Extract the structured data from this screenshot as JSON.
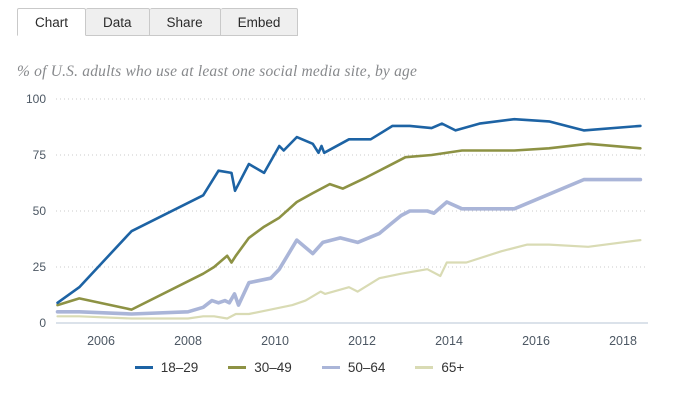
{
  "tabs": [
    {
      "label": "Chart",
      "active": true
    },
    {
      "label": "Data",
      "active": false
    },
    {
      "label": "Share",
      "active": false
    },
    {
      "label": "Embed",
      "active": false
    }
  ],
  "chart_data": {
    "type": "line",
    "title": "% of U.S. adults who use at least one social media site, by age",
    "unit": "%",
    "x_axis": {
      "range": [
        2005,
        2018.45
      ],
      "tick_years": [
        2006,
        2008,
        2010,
        2012,
        2014,
        2016,
        2018
      ]
    },
    "y_axis": {
      "range": [
        0,
        100
      ],
      "ticks": [
        0,
        25,
        50,
        75,
        100
      ],
      "gridlines": "dotted"
    },
    "legend_position": "bottom",
    "series": [
      {
        "name": "18–29",
        "color": "#1d63a4",
        "line_width": 2.6,
        "points": [
          [
            2005.0,
            9
          ],
          [
            2005.5,
            16
          ],
          [
            2006.7,
            41
          ],
          [
            2008.35,
            57
          ],
          [
            2008.7,
            68
          ],
          [
            2009.0,
            67
          ],
          [
            2009.08,
            59
          ],
          [
            2009.4,
            71
          ],
          [
            2009.75,
            67
          ],
          [
            2010.1,
            79
          ],
          [
            2010.2,
            77
          ],
          [
            2010.5,
            83
          ],
          [
            2010.87,
            80
          ],
          [
            2011.0,
            76
          ],
          [
            2011.07,
            79
          ],
          [
            2011.13,
            76
          ],
          [
            2011.7,
            82
          ],
          [
            2012.2,
            82
          ],
          [
            2012.7,
            88
          ],
          [
            2013.1,
            88
          ],
          [
            2013.6,
            87
          ],
          [
            2013.84,
            89
          ],
          [
            2014.15,
            86
          ],
          [
            2014.7,
            89
          ],
          [
            2015.5,
            91
          ],
          [
            2016.3,
            90
          ],
          [
            2017.1,
            86
          ],
          [
            2018.4,
            88
          ]
        ]
      },
      {
        "name": "30–49",
        "color": "#8d9244",
        "line_width": 2.6,
        "points": [
          [
            2005.0,
            8
          ],
          [
            2005.5,
            11
          ],
          [
            2006.7,
            6
          ],
          [
            2008.35,
            22
          ],
          [
            2008.6,
            25
          ],
          [
            2008.9,
            30
          ],
          [
            2009.0,
            27
          ],
          [
            2009.1,
            30
          ],
          [
            2009.4,
            38
          ],
          [
            2009.75,
            43
          ],
          [
            2010.1,
            47
          ],
          [
            2010.5,
            54
          ],
          [
            2010.87,
            58
          ],
          [
            2011.26,
            62
          ],
          [
            2011.56,
            60
          ],
          [
            2012.1,
            65
          ],
          [
            2012.6,
            70
          ],
          [
            2013.0,
            74
          ],
          [
            2013.6,
            75
          ],
          [
            2014.3,
            77
          ],
          [
            2015.5,
            77
          ],
          [
            2016.3,
            78
          ],
          [
            2017.2,
            80
          ],
          [
            2018.4,
            78
          ]
        ]
      },
      {
        "name": "50–64",
        "color": "#aab5d8",
        "line_width": 3.6,
        "points": [
          [
            2005.0,
            5
          ],
          [
            2005.5,
            5
          ],
          [
            2006.7,
            4
          ],
          [
            2008.0,
            5
          ],
          [
            2008.35,
            7
          ],
          [
            2008.55,
            10
          ],
          [
            2008.7,
            9
          ],
          [
            2008.85,
            10
          ],
          [
            2008.95,
            9
          ],
          [
            2009.07,
            13
          ],
          [
            2009.16,
            8
          ],
          [
            2009.4,
            18
          ],
          [
            2009.9,
            20
          ],
          [
            2010.1,
            24
          ],
          [
            2010.5,
            37
          ],
          [
            2010.87,
            31
          ],
          [
            2011.1,
            36
          ],
          [
            2011.5,
            38
          ],
          [
            2011.9,
            36
          ],
          [
            2012.4,
            40
          ],
          [
            2012.65,
            44
          ],
          [
            2012.9,
            48
          ],
          [
            2013.1,
            50
          ],
          [
            2013.5,
            50
          ],
          [
            2013.65,
            49
          ],
          [
            2013.95,
            54
          ],
          [
            2014.3,
            51
          ],
          [
            2015.5,
            51
          ],
          [
            2017.1,
            64
          ],
          [
            2018.4,
            64
          ]
        ]
      },
      {
        "name": "65+",
        "color": "#d9dbb4",
        "line_width": 2.2,
        "points": [
          [
            2005.0,
            3
          ],
          [
            2005.5,
            3
          ],
          [
            2006.7,
            2
          ],
          [
            2008.0,
            2
          ],
          [
            2008.35,
            3
          ],
          [
            2008.6,
            3
          ],
          [
            2008.9,
            2
          ],
          [
            2009.1,
            4
          ],
          [
            2009.4,
            4
          ],
          [
            2009.9,
            6
          ],
          [
            2010.4,
            8
          ],
          [
            2010.7,
            10
          ],
          [
            2011.05,
            14
          ],
          [
            2011.15,
            13
          ],
          [
            2011.7,
            16
          ],
          [
            2011.9,
            14
          ],
          [
            2012.4,
            20
          ],
          [
            2012.9,
            22
          ],
          [
            2013.5,
            24
          ],
          [
            2013.8,
            21
          ],
          [
            2013.95,
            27
          ],
          [
            2014.4,
            27
          ],
          [
            2015.2,
            32
          ],
          [
            2015.8,
            35
          ],
          [
            2016.3,
            35
          ],
          [
            2017.2,
            34
          ],
          [
            2018.4,
            37
          ]
        ]
      }
    ]
  },
  "style": {
    "gridline_color": "#cbcbcb",
    "baseline_color": "#c5d1de",
    "axis_label_color": "#4d5864"
  }
}
